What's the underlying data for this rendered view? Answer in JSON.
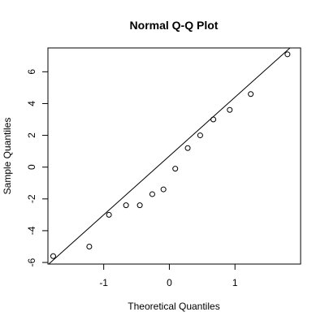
{
  "chart_data": {
    "type": "scatter",
    "title": "Normal Q-Q Plot",
    "xlabel": "Theoretical Quantiles",
    "ylabel": "Sample Quantiles",
    "xlim": [
      -1.85,
      2.0
    ],
    "ylim": [
      -6.1,
      7.5
    ],
    "x_ticks": [
      -1,
      0,
      1
    ],
    "x_tick_labels": [
      "-1",
      "0",
      "1"
    ],
    "y_ticks": [
      -6,
      -4,
      -2,
      0,
      2,
      4,
      6
    ],
    "y_tick_labels": [
      "-6",
      "-4",
      "-2",
      "0",
      "2",
      "4",
      "6"
    ],
    "grid": false,
    "points": {
      "x": [
        -1.77,
        -1.22,
        -0.92,
        -0.66,
        -0.45,
        -0.26,
        -0.09,
        0.09,
        0.28,
        0.47,
        0.67,
        0.92,
        1.24,
        1.8
      ],
      "y": [
        -5.6,
        -5.0,
        -3.0,
        -2.4,
        -2.4,
        -1.7,
        -1.4,
        -0.1,
        1.2,
        2.0,
        3.0,
        3.6,
        4.6,
        7.1
      ]
    },
    "reference_line": {
      "intercept": 0.7,
      "slope": 3.7
    }
  }
}
